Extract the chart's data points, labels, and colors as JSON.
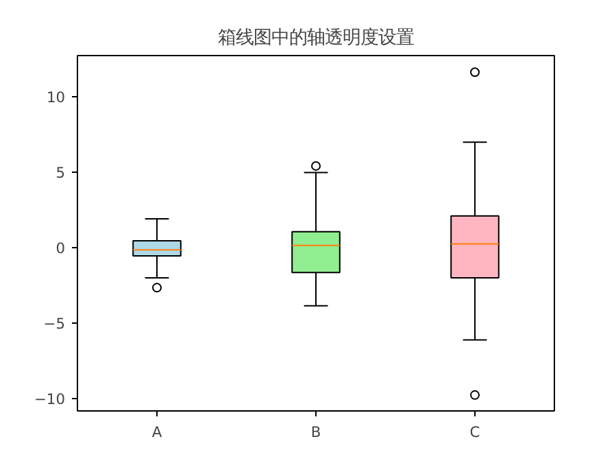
{
  "chart_data": {
    "type": "box",
    "title": "箱线图中的轴透明度设置",
    "categories": [
      "A",
      "B",
      "C"
    ],
    "colors": [
      "#add8e6",
      "#90ee90",
      "#ffb6c1"
    ],
    "boxes": [
      {
        "low": -2.0,
        "q1": -0.55,
        "median": -0.15,
        "q3": 0.45,
        "high": 1.9,
        "outliers": [
          -2.65
        ]
      },
      {
        "low": -3.85,
        "q1": -1.65,
        "median": 0.15,
        "q3": 1.05,
        "high": 4.97,
        "outliers": [
          5.4
        ]
      },
      {
        "low": -6.1,
        "q1": -2.0,
        "median": 0.25,
        "q3": 2.1,
        "high": 6.97,
        "outliers": [
          11.6,
          -9.75
        ]
      }
    ],
    "ylim": [
      -10.8,
      12.7
    ],
    "yticks": [
      -10,
      -5,
      0,
      5,
      10
    ],
    "grid": false,
    "marker": "circle"
  }
}
